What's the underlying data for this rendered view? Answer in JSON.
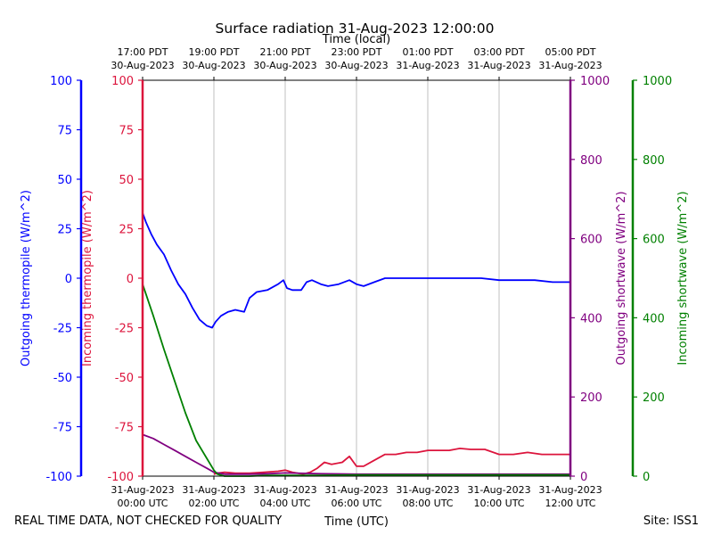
{
  "chart_data": {
    "type": "line",
    "title": "Surface radiation 31-Aug-2023 12:00:00",
    "top_axis_label": "Time (local)",
    "bottom_axis_label": "Time (UTC)",
    "footer_left": "REAL TIME DATA, NOT CHECKED FOR QUALITY",
    "footer_right": "Site: ISS1",
    "x_range_hours_utc": [
      0,
      12
    ],
    "grid": "vertical at each bottom tick",
    "bottom_ticks": [
      {
        "x": 0,
        "line1": "31-Aug-2023",
        "line2": "00:00 UTC"
      },
      {
        "x": 2,
        "line1": "31-Aug-2023",
        "line2": "02:00 UTC"
      },
      {
        "x": 4,
        "line1": "31-Aug-2023",
        "line2": "04:00 UTC"
      },
      {
        "x": 6,
        "line1": "31-Aug-2023",
        "line2": "06:00 UTC"
      },
      {
        "x": 8,
        "line1": "31-Aug-2023",
        "line2": "08:00 UTC"
      },
      {
        "x": 10,
        "line1": "31-Aug-2023",
        "line2": "10:00 UTC"
      },
      {
        "x": 12,
        "line1": "31-Aug-2023",
        "line2": "12:00 UTC"
      }
    ],
    "top_ticks": [
      {
        "x": 0,
        "line1": "17:00 PDT",
        "line2": "30-Aug-2023"
      },
      {
        "x": 2,
        "line1": "19:00 PDT",
        "line2": "30-Aug-2023"
      },
      {
        "x": 4,
        "line1": "21:00 PDT",
        "line2": "30-Aug-2023"
      },
      {
        "x": 6,
        "line1": "23:00 PDT",
        "line2": "30-Aug-2023"
      },
      {
        "x": 8,
        "line1": "01:00 PDT",
        "line2": "31-Aug-2023"
      },
      {
        "x": 10,
        "line1": "03:00 PDT",
        "line2": "31-Aug-2023"
      },
      {
        "x": 12,
        "line1": "05:00 PDT",
        "line2": "31-Aug-2023"
      }
    ],
    "axes": [
      {
        "id": "outgoing_thermopile",
        "label": "Outgoing thermopile (W/m^2)",
        "color": "#0000ff",
        "ylim": [
          -100,
          100
        ],
        "ticks": [
          -100,
          -75,
          -50,
          -25,
          0,
          25,
          50,
          75,
          100
        ]
      },
      {
        "id": "incoming_thermopile",
        "label": "Incoming thermopile (W/m^2)",
        "color": "#dc143c",
        "ylim": [
          -100,
          100
        ],
        "ticks": [
          -100,
          -75,
          -50,
          -25,
          0,
          25,
          50,
          75,
          100
        ]
      },
      {
        "id": "outgoing_shortwave",
        "label": "Outgoing shortwave (W/m^2)",
        "color": "#800080",
        "ylim": [
          0,
          1000
        ],
        "ticks": [
          0,
          200,
          400,
          600,
          800,
          1000
        ]
      },
      {
        "id": "incoming_shortwave",
        "label": "Incoming shortwave (W/m^2)",
        "color": "#008000",
        "ylim": [
          0,
          1000
        ],
        "ticks": [
          0,
          200,
          400,
          600,
          800,
          1000
        ]
      }
    ],
    "series": [
      {
        "axis": "outgoing_thermopile",
        "color": "#0000ff",
        "x": [
          0,
          0.1,
          0.25,
          0.4,
          0.6,
          0.8,
          1.0,
          1.2,
          1.4,
          1.6,
          1.8,
          1.95,
          2.05,
          2.2,
          2.4,
          2.6,
          2.85,
          3.0,
          3.2,
          3.5,
          3.8,
          3.95,
          4.05,
          4.2,
          4.45,
          4.6,
          4.75,
          5.0,
          5.2,
          5.5,
          5.8,
          6.0,
          6.2,
          6.5,
          6.8,
          7.0,
          7.3,
          7.6,
          8.0,
          8.3,
          8.6,
          9.0,
          9.5,
          10.0,
          10.5,
          11.0,
          11.5,
          12.0
        ],
        "y": [
          33,
          28,
          22,
          17,
          12,
          4,
          -3,
          -8,
          -15,
          -21,
          -24,
          -25,
          -22,
          -19,
          -17,
          -16,
          -17,
          -10,
          -7,
          -6,
          -3,
          -1,
          -5,
          -6,
          -6,
          -2,
          -1,
          -3,
          -4,
          -3,
          -1,
          -3,
          -4,
          -2,
          0,
          0,
          0,
          0,
          0,
          0,
          0,
          0,
          0,
          -1,
          -1,
          -1,
          -2,
          -2
        ]
      },
      {
        "axis": "incoming_thermopile",
        "color": "#dc143c",
        "x": [
          2.0,
          2.1,
          2.3,
          2.6,
          3.0,
          3.4,
          3.8,
          4.0,
          4.2,
          4.5,
          4.7,
          4.9,
          5.1,
          5.3,
          5.6,
          5.8,
          6.0,
          6.2,
          6.5,
          6.8,
          7.1,
          7.4,
          7.7,
          8.0,
          8.3,
          8.6,
          8.9,
          9.2,
          9.6,
          10.0,
          10.4,
          10.8,
          11.2,
          11.6,
          12.0
        ],
        "y": [
          -99,
          -98.5,
          -98,
          -98.5,
          -98.5,
          -98,
          -97.5,
          -97,
          -98,
          -99,
          -98,
          -96,
          -93,
          -94,
          -93,
          -90,
          -95,
          -95,
          -92,
          -89,
          -89,
          -88,
          -88,
          -87,
          -87,
          -87,
          -86,
          -86.5,
          -86.5,
          -89,
          -89,
          -88,
          -89,
          -89,
          -89
        ]
      },
      {
        "axis": "outgoing_shortwave",
        "color": "#800080",
        "x": [
          0,
          0.3,
          0.6,
          0.9,
          1.2,
          1.5,
          1.8,
          2.0,
          2.3,
          2.6,
          3.0,
          3.5,
          4.0,
          5.0,
          6.0,
          7.0,
          8.0,
          9.0,
          10.0,
          11.0,
          12.0
        ],
        "y": [
          105,
          95,
          80,
          65,
          50,
          35,
          20,
          10,
          5,
          5,
          5,
          6,
          8,
          6,
          5,
          5,
          5,
          5,
          5,
          5,
          5
        ]
      },
      {
        "axis": "incoming_shortwave",
        "color": "#008000",
        "x": [
          0,
          0.3,
          0.6,
          0.9,
          1.2,
          1.5,
          1.8,
          2.0,
          2.1,
          2.3,
          2.6,
          3.0,
          3.5,
          4.0,
          5.0,
          6.0,
          7.0,
          8.0,
          9.0,
          10.0,
          11.0,
          12.0
        ],
        "y": [
          485,
          405,
          320,
          240,
          160,
          90,
          45,
          15,
          5,
          0,
          0,
          0,
          2,
          2,
          2,
          3,
          3,
          3,
          3,
          3,
          3,
          3
        ]
      }
    ]
  }
}
